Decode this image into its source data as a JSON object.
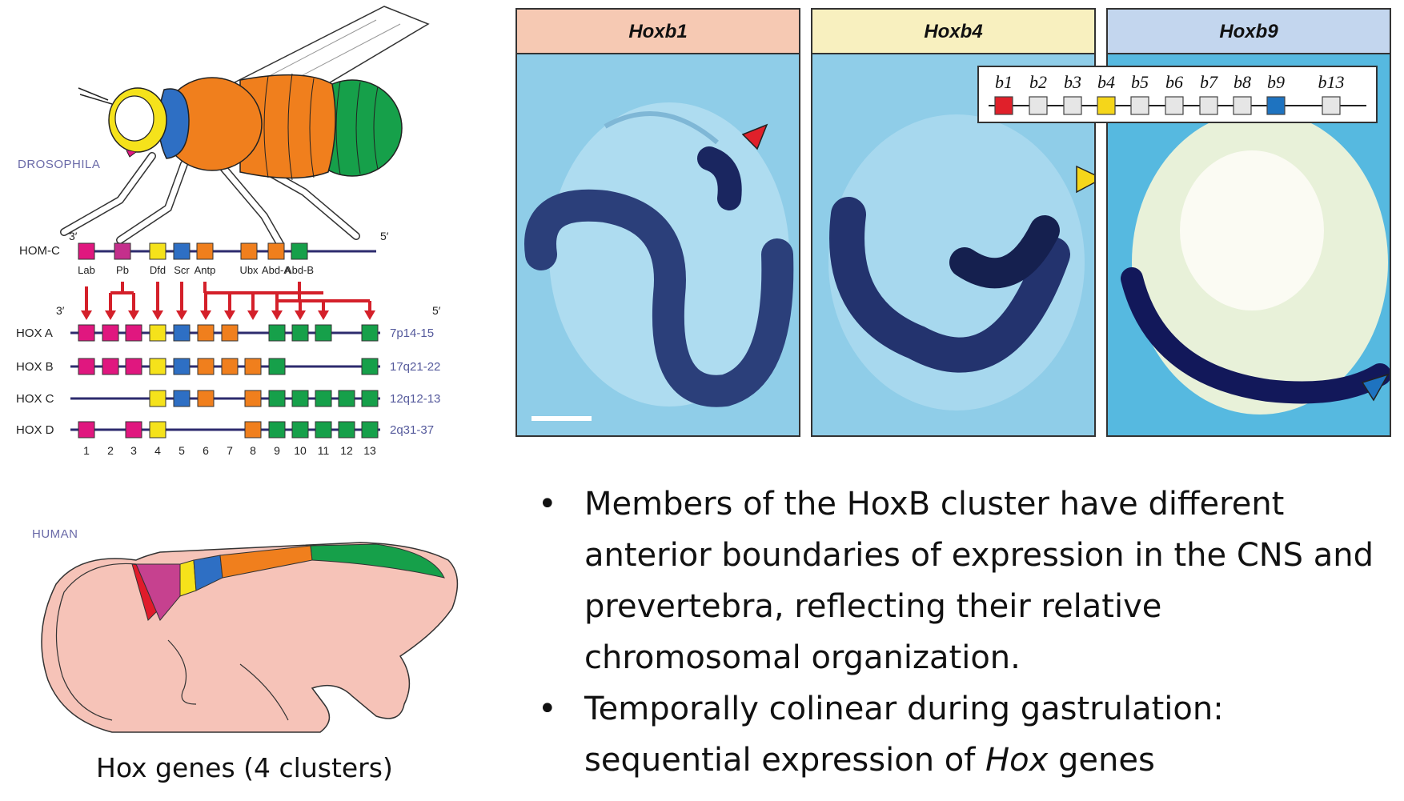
{
  "colors": {
    "lab": "#e0177f",
    "pb": "#c42f8c",
    "dfd": "#f5e21b",
    "scr": "#2e6fc4",
    "antp": "#f07f1d",
    "abd": "#16a04a",
    "line": "#2d2b6e",
    "arrow": "#d4202a"
  },
  "fly": {
    "organism_label": "DROSOPHILA"
  },
  "homc": {
    "label": "HOM-C",
    "end_left": "3′",
    "end_right": "5′",
    "genes": [
      "Lab",
      "Pb",
      "Dfd",
      "Scr",
      "Antp",
      "Ubx",
      "Abd-A",
      "Abd-B"
    ]
  },
  "hox": {
    "end_left": "3′",
    "end_right": "5′",
    "clusters": [
      {
        "name": "HOX  A",
        "locus": "7p14-15"
      },
      {
        "name": "HOX  B",
        "locus": "17q21-22"
      },
      {
        "name": "HOX  C",
        "locus": "12q12-13"
      },
      {
        "name": "HOX  D",
        "locus": "2q31-37"
      }
    ],
    "paralog_numbers": [
      "1",
      "2",
      "3",
      "4",
      "5",
      "6",
      "7",
      "8",
      "9",
      "10",
      "11",
      "12",
      "13"
    ]
  },
  "human": {
    "organism_label": "HUMAN"
  },
  "caption": "Hox genes (4 clusters)",
  "panels": [
    {
      "title": "Hoxb1",
      "header_color": "#f6c9b3",
      "marker_color": "#e0202a"
    },
    {
      "title": "Hoxb4",
      "header_color": "#f8f0bf",
      "marker_color": "#f5d61a"
    },
    {
      "title": "Hoxb9",
      "header_color": "#c3d6ee",
      "marker_color": "#1e73c0"
    }
  ],
  "hoxb_legend": {
    "genes": [
      "b1",
      "b2",
      "b3",
      "b4",
      "b5",
      "b6",
      "b7",
      "b8",
      "b9",
      "b13"
    ],
    "highlight": {
      "b1": "#e0202a",
      "b4": "#f5d61a",
      "b9": "#1e73c0"
    }
  },
  "bullets": [
    {
      "text": "Members of the HoxB cluster have different anterior boundaries of expression in the CNS and prevertebra, reflecting their relative chromosomal organization."
    },
    {
      "text_before": "Temporally colinear during gastrulation: sequential expression of ",
      "text_italic": "Hox",
      "text_after": " genes"
    }
  ]
}
